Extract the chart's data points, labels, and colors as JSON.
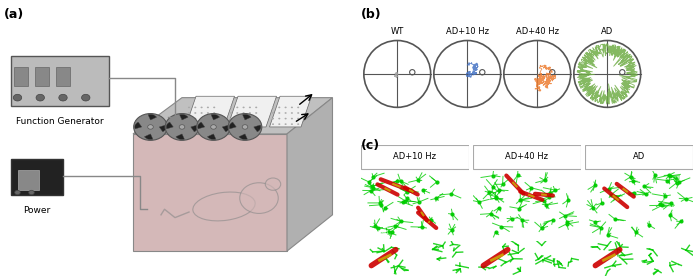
{
  "panel_a_label": "(a)",
  "panel_b_label": "(b)",
  "panel_c_label": "(c)",
  "panel_b_titles": [
    "WT",
    "AD+10 Hz",
    "AD+40 Hz",
    "AD"
  ],
  "panel_b_colors": [
    "#a0a0a0",
    "#4472c4",
    "#ed7d31",
    "#70ad47"
  ],
  "panel_c_titles": [
    "AD+10 Hz",
    "AD+40 Hz",
    "AD"
  ],
  "function_generator_label": "Function Generator",
  "power_label": "Power",
  "fig_width": 7.0,
  "fig_height": 2.79,
  "dpi": 100
}
